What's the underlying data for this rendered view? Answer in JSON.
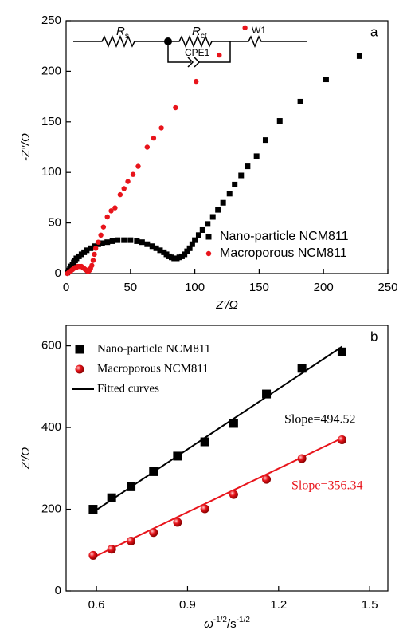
{
  "chart_data": [
    {
      "type": "scatter",
      "panel": "a",
      "xlabel": "Z′/Ω",
      "ylabel": "-Z″/Ω",
      "xlim": [
        0,
        250
      ],
      "ylim": [
        0,
        250
      ],
      "xticks": [
        0,
        50,
        100,
        150,
        200,
        250
      ],
      "yticks": [
        0,
        50,
        100,
        150,
        200,
        250
      ],
      "circuit": [
        {
          "main": "R",
          "sub": "s"
        },
        {
          "main": "R",
          "sub": "ct"
        },
        {
          "main": "CPE1"
        },
        {
          "main": "W1"
        }
      ],
      "series": [
        {
          "name": "Nano-particle  NCM811",
          "color": "#000000",
          "marker": "square",
          "x": [
            1,
            2,
            3,
            4,
            5,
            6,
            7,
            8,
            10,
            12,
            14,
            16,
            19,
            22,
            25,
            28,
            32,
            36,
            40,
            45,
            50,
            55,
            59,
            63,
            67,
            70,
            73,
            76,
            78,
            80,
            82,
            84,
            86,
            88,
            90,
            92,
            94,
            96,
            98,
            100,
            103,
            106,
            110,
            114,
            118,
            122,
            127,
            131,
            136,
            141,
            148,
            155,
            166,
            182,
            202,
            228
          ],
          "values": [
            1,
            3,
            5,
            7,
            9,
            11,
            13,
            15,
            17,
            19,
            21,
            23,
            25,
            27,
            29,
            30,
            31,
            32,
            33,
            33,
            33,
            32,
            31,
            29,
            27,
            25,
            23,
            21,
            19,
            17,
            16,
            15,
            15,
            16,
            17,
            19,
            22,
            25,
            29,
            33,
            38,
            43,
            49,
            56,
            63,
            70,
            79,
            88,
            97,
            106,
            116,
            132,
            151,
            170,
            192,
            215
          ]
        },
        {
          "name": "Macroporous  NCM811",
          "color": "#e8141b",
          "marker": "circle",
          "x": [
            1,
            2,
            3,
            4,
            5,
            6,
            7,
            8,
            9,
            10,
            11,
            12,
            13,
            14,
            15,
            16,
            17,
            18,
            19,
            20,
            21,
            22,
            23,
            25,
            27,
            29,
            32,
            35,
            38,
            42,
            45,
            48,
            52,
            56,
            63,
            68,
            74,
            85,
            101,
            119,
            139
          ],
          "values": [
            0,
            1,
            2,
            3,
            4,
            5,
            6,
            6,
            7,
            7,
            7,
            7,
            6,
            5,
            4,
            3,
            2,
            3,
            5,
            8,
            13,
            19,
            25,
            31,
            38,
            46,
            56,
            62,
            65,
            78,
            84,
            91,
            98,
            106,
            125,
            134,
            144,
            164,
            190,
            216,
            243
          ]
        }
      ]
    },
    {
      "type": "scatter",
      "panel": "b",
      "xlabel": [
        "ω",
        "-1/2",
        "/s",
        "-1/2"
      ],
      "ylabel": "Z′/Ω",
      "xlim": [
        0.5,
        1.56
      ],
      "ylim": [
        0,
        650
      ],
      "xticks": [
        0.6,
        0.9,
        1.2,
        1.5
      ],
      "yticks": [
        0,
        200,
        400,
        600
      ],
      "fit_name": "Fitted curves",
      "fit_color": "#000000",
      "series": [
        {
          "name": "Nano-particle NCM811",
          "color": "#000000",
          "marker": "square",
          "x": [
            0.589,
            0.65,
            0.714,
            0.788,
            0.867,
            0.957,
            1.052,
            1.16,
            1.277,
            1.409
          ],
          "values": [
            200,
            228,
            255,
            292,
            330,
            365,
            410,
            482,
            545,
            585
          ],
          "fit": {
            "x": [
              0.589,
              1.409
            ],
            "values": [
              193,
              598
            ]
          }
        },
        {
          "name": "Macroporous  NCM811",
          "color": "#e8141b",
          "marker": "ball",
          "x": [
            0.589,
            0.65,
            0.714,
            0.788,
            0.867,
            0.957,
            1.052,
            1.16,
            1.277,
            1.409
          ],
          "values": [
            87,
            102,
            122,
            143,
            168,
            201,
            236,
            273,
            324,
            370
          ],
          "fit": {
            "x": [
              0.589,
              1.409
            ],
            "values": [
              82,
              374
            ]
          }
        }
      ],
      "annotations": [
        {
          "text": "Slope=494.52",
          "color": "#000000"
        },
        {
          "text": "Slope=356.34",
          "color": "#e8141b"
        }
      ]
    }
  ]
}
